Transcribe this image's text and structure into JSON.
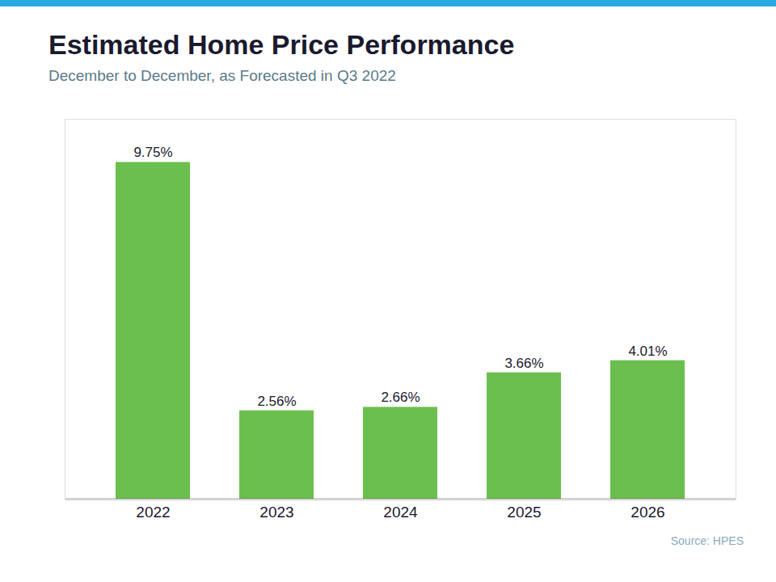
{
  "chart_data": {
    "type": "bar",
    "title": "Estimated Home Price Performance",
    "subtitle": "December to December, as Forecasted in Q3 2022",
    "source": "Source: HPES",
    "categories": [
      "2022",
      "2023",
      "2024",
      "2025",
      "2026"
    ],
    "values": [
      9.75,
      2.56,
      2.66,
      3.66,
      4.01
    ],
    "value_labels": [
      "9.75%",
      "2.56%",
      "2.66%",
      "3.66%",
      "4.01%"
    ],
    "data_labels": true,
    "color": "#6BBF4E",
    "ylim": [
      0,
      11
    ],
    "grid": false,
    "tick_labels": "x"
  }
}
